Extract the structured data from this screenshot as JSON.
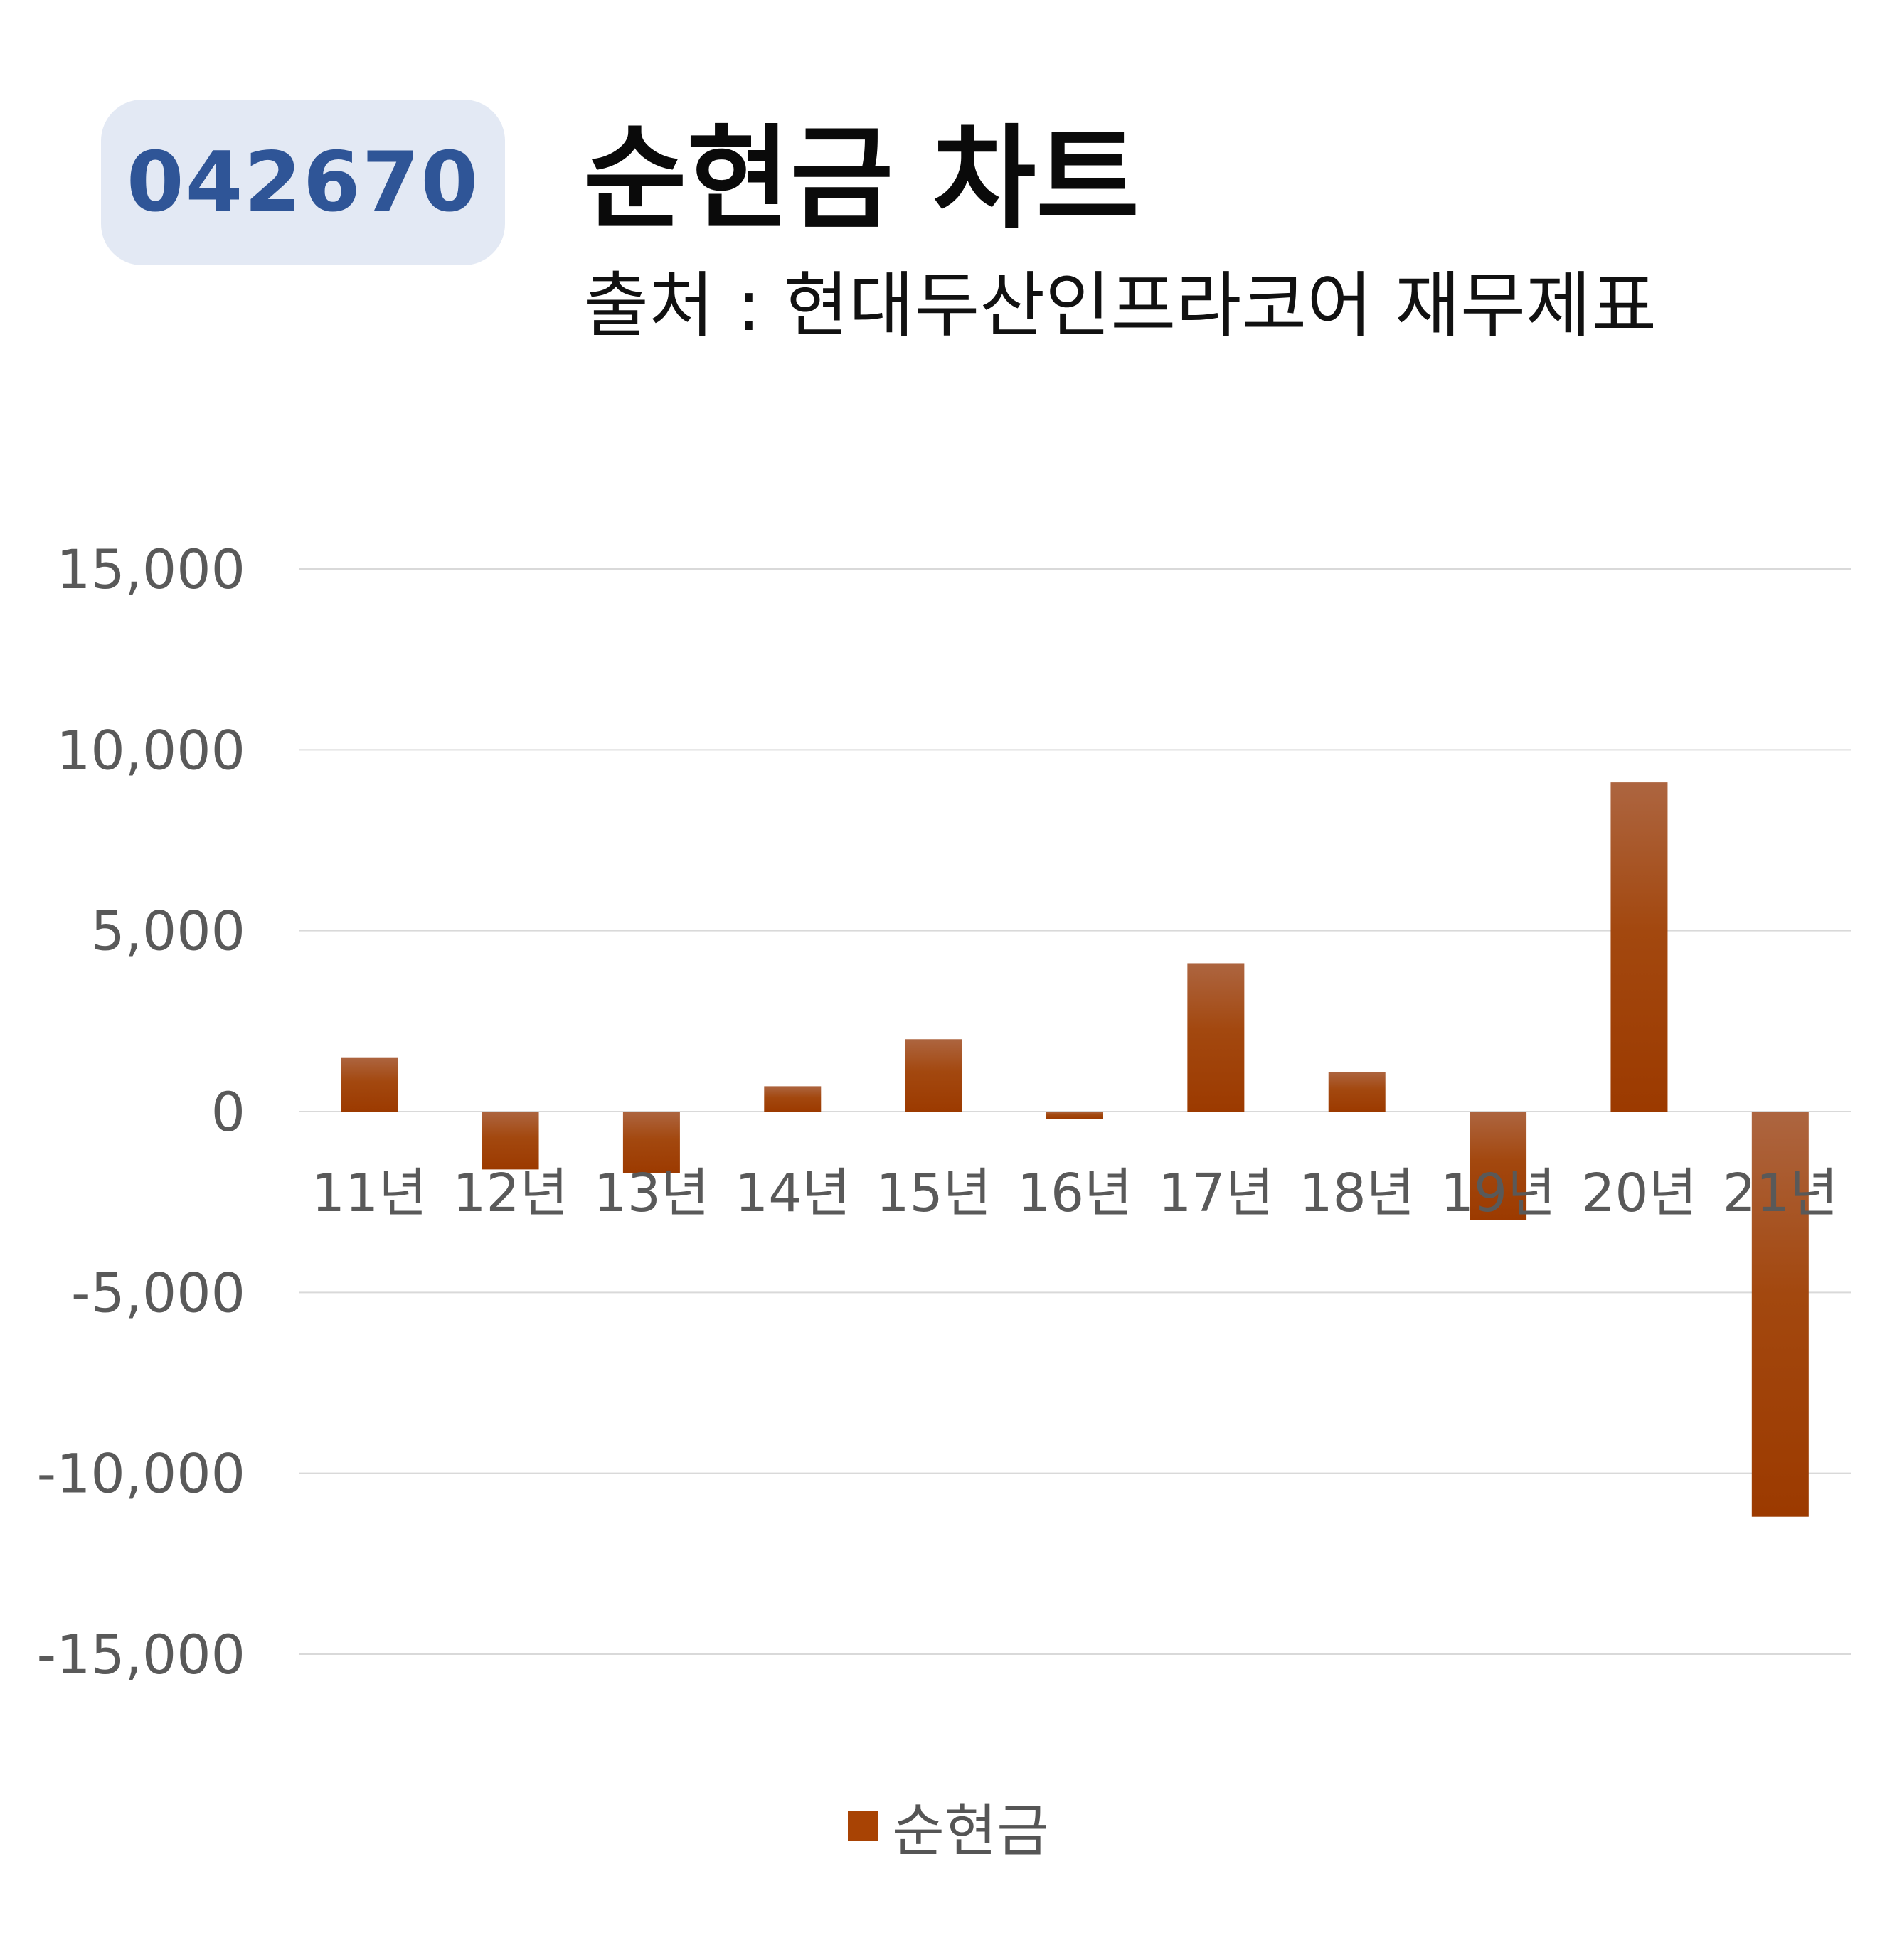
{
  "badge": {
    "code": "042670"
  },
  "header": {
    "title": "순현금 차트",
    "subtitle": "출처 : 현대두산인프라코어 재무제표"
  },
  "colors": {
    "bar": "#a84304",
    "badge_bg": "#e3e9f4",
    "badge_text": "#2f5597",
    "grid": "#d9d9d9",
    "tick_text": "#595959"
  },
  "chart_data": {
    "type": "bar",
    "categories": [
      "11년",
      "12년",
      "13년",
      "14년",
      "15년",
      "16년",
      "17년",
      "18년",
      "19년",
      "20년",
      "21년"
    ],
    "series": [
      {
        "name": "순현금",
        "values": [
          1500,
          -1600,
          -1700,
          700,
          2000,
          -200,
          4100,
          1100,
          -3000,
          9100,
          -11200
        ]
      }
    ],
    "ylim": [
      -15000,
      15000
    ],
    "yticks": [
      15000,
      10000,
      5000,
      0,
      -5000,
      -10000,
      -15000
    ],
    "ytick_labels": [
      "15,000",
      "10,000",
      "5,000",
      "0",
      "-5,000",
      "-10,000",
      "-15,000"
    ],
    "grid": true,
    "legend": "bottom"
  }
}
